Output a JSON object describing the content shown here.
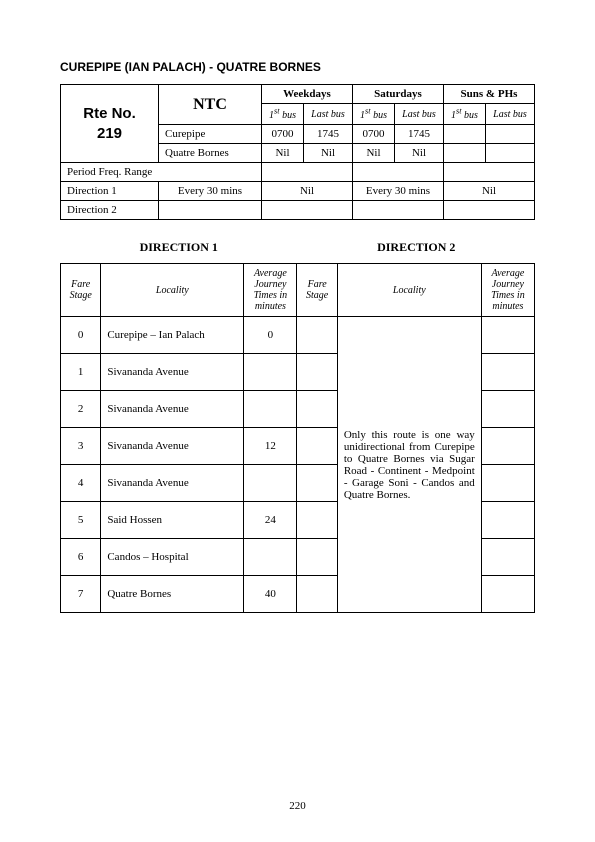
{
  "title": "CUREPIPE (IAN PALACH) - QUATRE BORNES",
  "route": {
    "rte_label": "Rte No.",
    "rte_no": "219",
    "operator": "NTC"
  },
  "schedule": {
    "days": {
      "weekdays": "Weekdays",
      "saturdays": "Saturdays",
      "suns": "Suns & PHs"
    },
    "col_labels": {
      "first_bus": "1",
      "first_bus_suffix": " bus",
      "last_bus": "Last bus"
    },
    "origins": {
      "curepipe": "Curepipe",
      "quatre": "Quatre Bornes"
    },
    "times": {
      "curepipe_wk_first": "0700",
      "curepipe_wk_last": "1745",
      "curepipe_sat_first": "0700",
      "curepipe_sat_last": "1745",
      "curepipe_sun_first": "",
      "curepipe_sun_last": "",
      "quatre_wk_first": "Nil",
      "quatre_wk_last": "Nil",
      "quatre_sat_first": "Nil",
      "quatre_sat_last": "Nil",
      "quatre_sun_first": "",
      "quatre_sun_last": ""
    },
    "rows": {
      "period_freq": "Period Freq. Range",
      "dir1": "Direction 1",
      "dir2": "Direction 2",
      "dir1_freq": "Every 30 mins",
      "dir1_wk": "Nil",
      "dir1_sat": "Every 30 mins",
      "dir1_sun": "Nil"
    }
  },
  "directions": {
    "dir1_heading": "DIRECTION  1",
    "dir2_heading": "DIRECTION  2",
    "headers": {
      "fare_stage": "Fare\nStage",
      "locality": "Locality",
      "avg": "Average\nJourney\nTimes in\nminutes"
    },
    "stops": [
      {
        "stage": "0",
        "loc": "Curepipe – Ian Palach",
        "time": "0"
      },
      {
        "stage": "1",
        "loc": "Sivananda Avenue",
        "time": ""
      },
      {
        "stage": "2",
        "loc": "Sivananda Avenue",
        "time": ""
      },
      {
        "stage": "3",
        "loc": "Sivananda Avenue",
        "time": "12"
      },
      {
        "stage": "4",
        "loc": "Sivananda Avenue",
        "time": ""
      },
      {
        "stage": "5",
        "loc": "Said Hossen",
        "time": "24"
      },
      {
        "stage": "6",
        "loc": "Candos – Hospital",
        "time": ""
      },
      {
        "stage": "7",
        "loc": "Quatre Bornes",
        "time": "40"
      }
    ],
    "note": "Only this route is one way unidirectional from Curepipe to Quatre Bornes via Sugar Road - Continent - Medpoint - Garage Soni - Candos and Quatre Bornes."
  },
  "page_number": "220"
}
